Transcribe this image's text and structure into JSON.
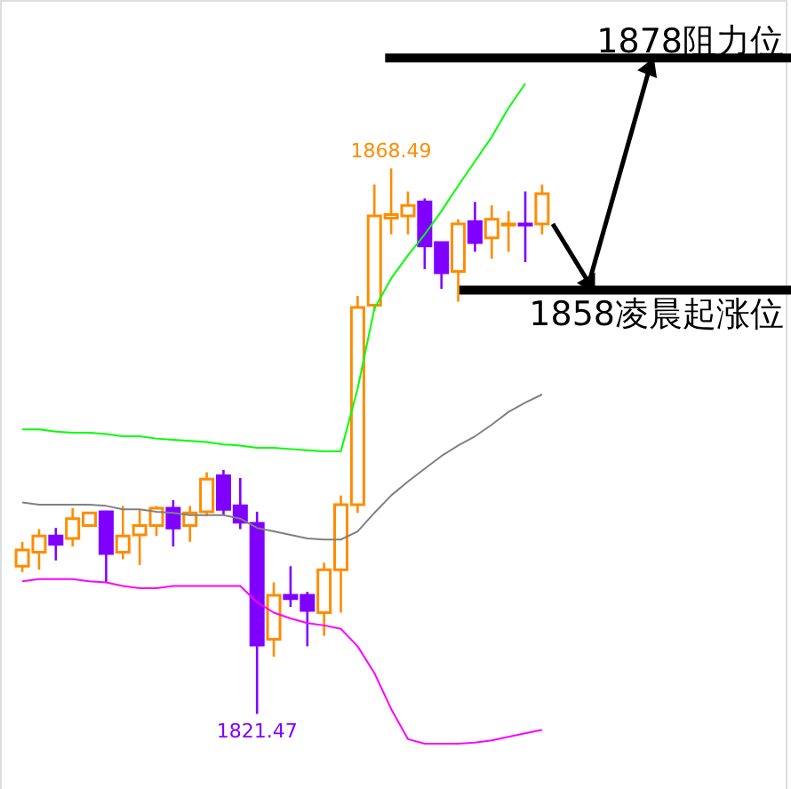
{
  "chart_data": {
    "type": "candlestick",
    "categories": [
      null,
      null,
      null,
      null,
      null,
      null,
      null,
      null,
      null,
      null,
      null,
      null,
      null,
      null,
      null,
      null,
      null,
      null,
      null,
      null,
      null,
      null,
      null,
      null,
      null,
      null,
      null,
      null,
      null,
      null,
      null,
      null
    ],
    "ohlc": [
      [
        1834.2,
        1836.3,
        1833.7,
        1835.6
      ],
      [
        1835.4,
        1837.4,
        1833.9,
        1836.8
      ],
      [
        1836.8,
        1837.5,
        1834.7,
        1836.1
      ],
      [
        1836.6,
        1839.2,
        1835.9,
        1838.3
      ],
      [
        1837.7,
        1838.8,
        1837.7,
        1838.8
      ],
      [
        1838.9,
        1838.9,
        1832.8,
        1835.3
      ],
      [
        1835.4,
        1839.4,
        1834.8,
        1836.8
      ],
      [
        1836.9,
        1839.1,
        1834.3,
        1837.7
      ],
      [
        1837.7,
        1839.4,
        1836.8,
        1839.2
      ],
      [
        1839.2,
        1839.9,
        1835.9,
        1837.5
      ],
      [
        1837.7,
        1839.4,
        1836.3,
        1838.8
      ],
      [
        1838.9,
        1842.3,
        1838.5,
        1841.7
      ],
      [
        1842.0,
        1842.5,
        1838.6,
        1839.1
      ],
      [
        1839.4,
        1841.8,
        1837.4,
        1838.0
      ],
      [
        1837.9,
        1838.9,
        1821.47,
        1827.4
      ],
      [
        1827.9,
        1832.8,
        1826.4,
        1831.7
      ],
      [
        1831.7,
        1834.2,
        1830.7,
        1831.4
      ],
      [
        1831.7,
        1832.0,
        1827.3,
        1830.4
      ],
      [
        1830.2,
        1834.5,
        1828.2,
        1833.9
      ],
      [
        1833.9,
        1840.3,
        1830.2,
        1839.5
      ],
      [
        1839.5,
        1857.5,
        1838.8,
        1856.5
      ],
      [
        1856.7,
        1867.1,
        1856.2,
        1864.4
      ],
      [
        1864.2,
        1868.49,
        1862.8,
        1864.5
      ],
      [
        1864.4,
        1866.5,
        1862.8,
        1865.3
      ],
      [
        1865.6,
        1865.9,
        1859.8,
        1861.8
      ],
      [
        1862.1,
        1862.1,
        1858.1,
        1859.5
      ],
      [
        1859.6,
        1864.1,
        1857.0,
        1863.7
      ],
      [
        1863.9,
        1865.6,
        1861.3,
        1862.1
      ],
      [
        1862.5,
        1865.3,
        1860.7,
        1864.1
      ],
      [
        1863.6,
        1864.8,
        1861.3,
        1863.7
      ],
      [
        1863.7,
        1866.5,
        1860.4,
        1863.6
      ],
      [
        1863.7,
        1867.1,
        1862.8,
        1866.3
      ]
    ],
    "colors": [
      "#ff8c00",
      "#ff8c00",
      "#8000ff",
      "#ff8c00",
      "#ff8c00",
      "#8000ff",
      "#ff8c00",
      "#ff8c00",
      "#ff8c00",
      "#8000ff",
      "#ff8c00",
      "#ff8c00",
      "#8000ff",
      "#8000ff",
      "#8000ff",
      "#ff8c00",
      "#8000ff",
      "#8000ff",
      "#ff8c00",
      "#ff8c00",
      "#ff8c00",
      "#ff8c00",
      "#ff8c00",
      "#ff8c00",
      "#8000ff",
      "#8000ff",
      "#ff8c00",
      "#8000ff",
      "#ff8c00",
      "#ff8c00",
      "#8000ff",
      "#ff8c00"
    ],
    "series": [
      {
        "type": "line",
        "color": "#00ff00",
        "values": [
          1846.0,
          1846.0,
          1845.8,
          1845.7,
          1845.7,
          1845.6,
          1845.4,
          1845.4,
          1845.2,
          1845.1,
          1845.0,
          1844.9,
          1844.7,
          1844.6,
          1844.4,
          1844.4,
          1844.3,
          1844.2,
          1844.1,
          1844.1,
          1849.5,
          1856.4,
          1859.0,
          1861.0,
          1862.8,
          1864.8,
          1867.0,
          1869.1,
          1871.2,
          1873.7,
          1875.8,
          null
        ]
      },
      {
        "type": "line",
        "color": "#808080",
        "values": [
          1839.7,
          1839.5,
          1839.5,
          1839.5,
          1839.5,
          1839.4,
          1839.1,
          1839.1,
          1838.9,
          1838.8,
          1838.6,
          1838.6,
          1838.6,
          1838.3,
          1837.5,
          1837.2,
          1836.9,
          1836.6,
          1836.5,
          1836.5,
          1837.2,
          1838.8,
          1840.3,
          1841.5,
          1842.6,
          1843.7,
          1844.6,
          1845.4,
          1846.4,
          1847.5,
          1848.3,
          1849.0
        ]
      },
      {
        "type": "line",
        "color": "#ff00ff",
        "values": [
          1832.9,
          1833.1,
          1833.1,
          1833.1,
          1832.9,
          1832.8,
          1832.5,
          1832.3,
          1832.3,
          1832.5,
          1832.5,
          1832.5,
          1832.5,
          1832.5,
          1831.1,
          1830.2,
          1829.7,
          1829.3,
          1829.1,
          1828.8,
          1827.3,
          1825.0,
          1821.9,
          1819.3,
          1818.9,
          1818.9,
          1818.9,
          1819.0,
          1819.2,
          1819.5,
          1819.8,
          1820.1
        ]
      }
    ],
    "ylim": [
      1815,
      1883
    ],
    "tick_labels": false,
    "annotations": [
      {
        "text": "1868.49",
        "y": 1868.49
      },
      {
        "text": "1821.47",
        "y": 1821.47
      }
    ],
    "ref_lines": [
      {
        "axis": "y",
        "value": 1878,
        "label": "1878阻力位",
        "color": "#000000"
      },
      {
        "axis": "y",
        "value": 1858,
        "label": "1858凌晨起涨位",
        "color": "#000000"
      }
    ]
  }
}
